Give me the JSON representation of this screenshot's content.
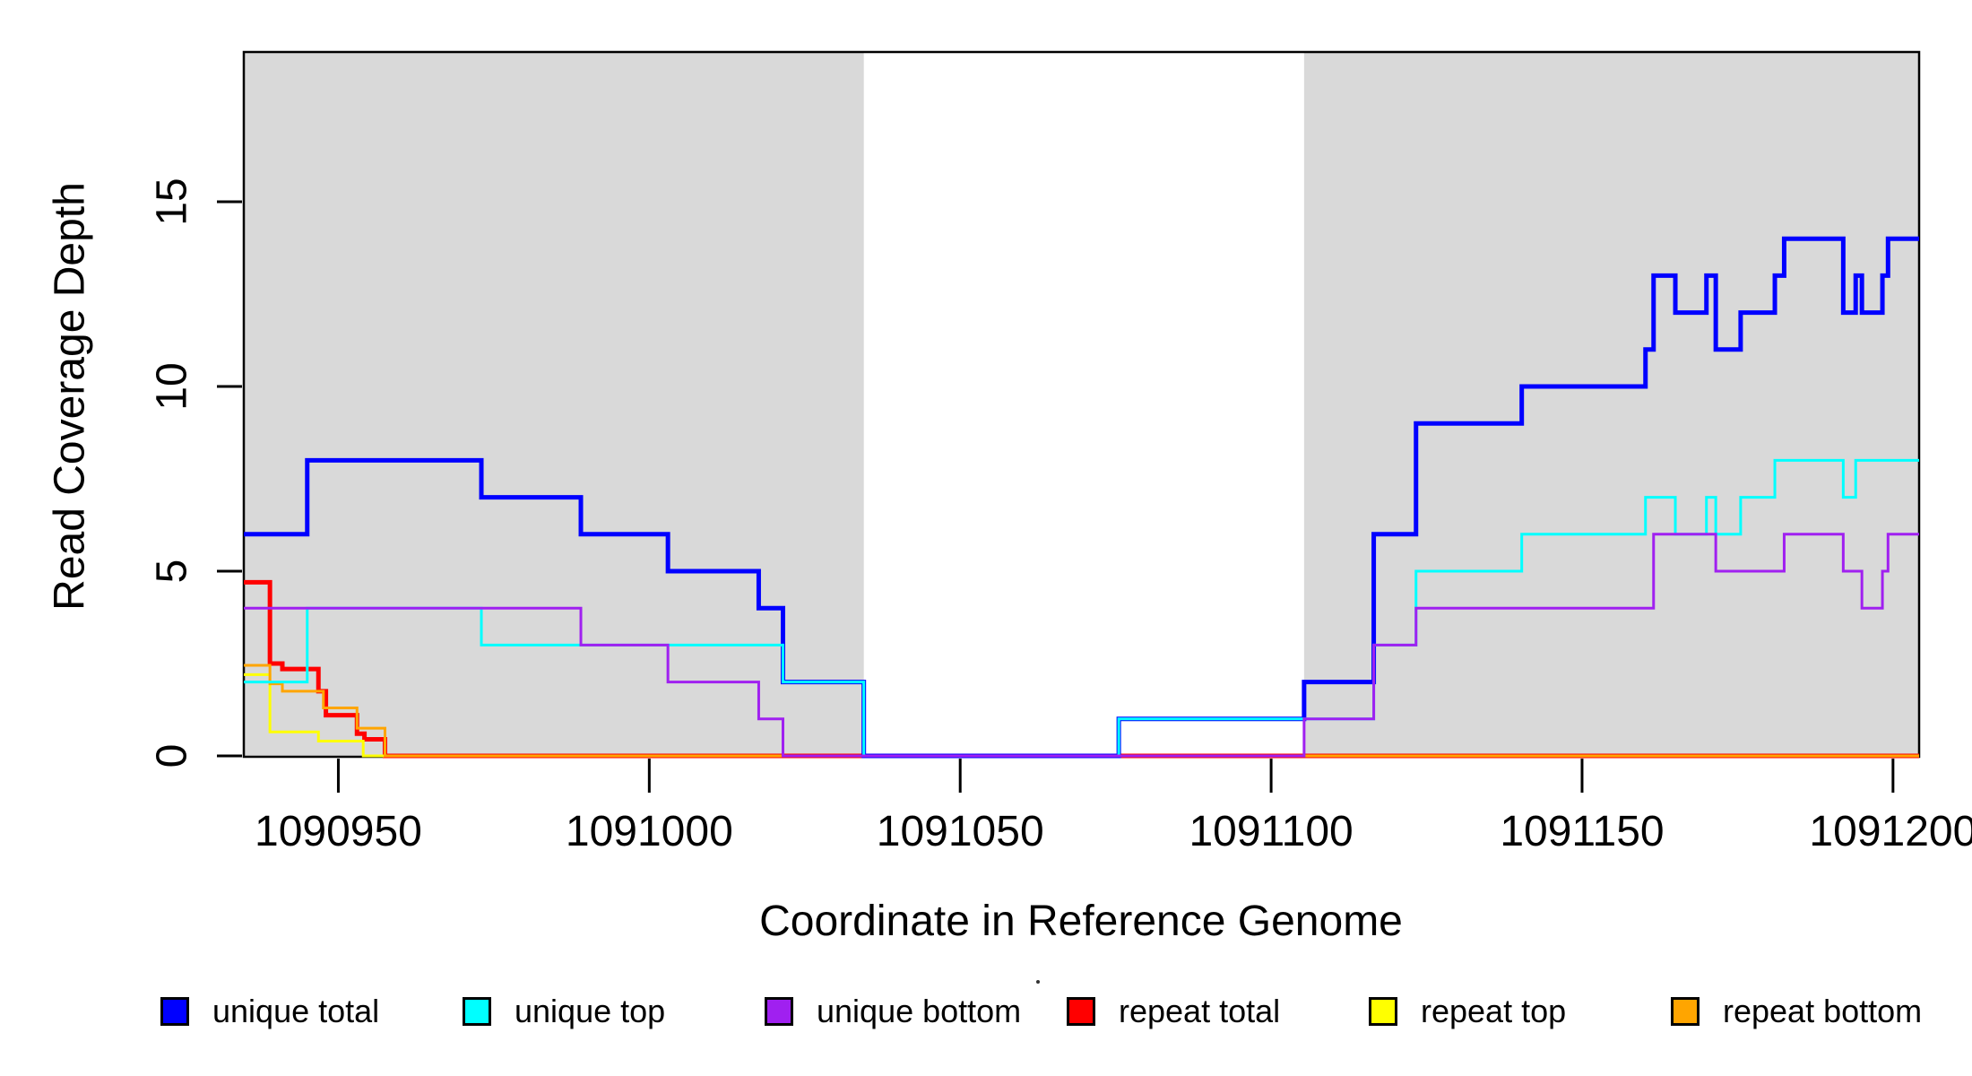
{
  "figure": {
    "x_title": "Coordinate in Reference Genome",
    "y_title": "Read Coverage Depth"
  },
  "legend": {
    "position": "bottom",
    "items": [
      {
        "label": "unique total",
        "color": "#0000FF"
      },
      {
        "label": "unique top",
        "color": "#00FFFF"
      },
      {
        "label": "unique bottom",
        "color": "#A020F0"
      },
      {
        "label": "repeat total",
        "color": "#FF0000"
      },
      {
        "label": "repeat top",
        "color": "#FFFF00"
      },
      {
        "label": "repeat bottom",
        "color": "#FFA500"
      }
    ]
  },
  "chart_data": {
    "type": "line",
    "subtype": "step-coverage",
    "title": "",
    "xlabel": "Coordinate in Reference Genome",
    "ylabel": "Read Coverage Depth",
    "grid": false,
    "background_color": "#FFFFFF",
    "shaded_region_color": "#D9D9D9",
    "shaded_regions": [
      {
        "x0": 1090934.8,
        "x1": 1091034.5
      },
      {
        "x0": 1091105.3,
        "x1": 1091204.2
      }
    ],
    "x_axis": {
      "range": [
        1090934.8,
        1091204.2
      ],
      "ticks": [
        {
          "value": 1090950,
          "label": "1090950"
        },
        {
          "value": 1091000,
          "label": "1091000"
        },
        {
          "value": 1091050,
          "label": "1091050"
        },
        {
          "value": 1091100,
          "label": "1091100"
        },
        {
          "value": 1091150,
          "label": "1091150"
        },
        {
          "value": 1091200,
          "label": "1091200"
        }
      ]
    },
    "y_axis": {
      "range": [
        0,
        19
      ],
      "ticks": [
        {
          "value": 0,
          "label": "0"
        },
        {
          "value": 5,
          "label": "5"
        },
        {
          "value": 10,
          "label": "10"
        },
        {
          "value": 15,
          "label": "15"
        }
      ]
    },
    "series": [
      {
        "name": "repeat total",
        "color": "#FF0000",
        "line_width": 5,
        "steps": [
          [
            1090934.8,
            4.7
          ],
          [
            1090939,
            2.5
          ],
          [
            1090941,
            2.35
          ],
          [
            1090946.8,
            1.75
          ],
          [
            1090948,
            1.1
          ],
          [
            1090953,
            0.6
          ],
          [
            1090954.2,
            0.45
          ],
          [
            1090957.5,
            0
          ]
        ]
      },
      {
        "name": "repeat top",
        "color": "#FFFF00",
        "line_width": 3,
        "steps": [
          [
            1090934.8,
            2.2
          ],
          [
            1090939,
            0.65
          ],
          [
            1090946.8,
            0.4
          ],
          [
            1090954,
            0
          ]
        ]
      },
      {
        "name": "repeat bottom",
        "color": "#FFA500",
        "line_width": 3,
        "steps": [
          [
            1090934.8,
            2.45
          ],
          [
            1090939,
            1.95
          ],
          [
            1090941,
            1.75
          ],
          [
            1090947.6,
            1.3
          ],
          [
            1090953,
            0.75
          ],
          [
            1090957.5,
            0
          ]
        ]
      },
      {
        "name": "unique total",
        "color": "#0000FF",
        "line_width": 5,
        "steps": [
          [
            1090934.8,
            6
          ],
          [
            1090945,
            8
          ],
          [
            1090973,
            7
          ],
          [
            1090989,
            6
          ],
          [
            1091003,
            5
          ],
          [
            1091017.6,
            4
          ],
          [
            1091021.5,
            2
          ],
          [
            1091034.5,
            0
          ],
          [
            1091075.5,
            1
          ],
          [
            1091105.3,
            2
          ],
          [
            1091116.5,
            6
          ],
          [
            1091123.3,
            9
          ],
          [
            1091140.3,
            10
          ],
          [
            1091160.2,
            11
          ],
          [
            1091161.5,
            13
          ],
          [
            1091165,
            12
          ],
          [
            1091170,
            13
          ],
          [
            1091171.5,
            11
          ],
          [
            1091175.5,
            12
          ],
          [
            1091181,
            13
          ],
          [
            1091182.5,
            14
          ],
          [
            1091192,
            12
          ],
          [
            1091194,
            13
          ],
          [
            1091195,
            12
          ],
          [
            1091198.3,
            13
          ],
          [
            1091199.2,
            14
          ]
        ]
      },
      {
        "name": "unique top",
        "color": "#00FFFF",
        "line_width": 3,
        "steps": [
          [
            1090934.8,
            2
          ],
          [
            1090945,
            4
          ],
          [
            1090973,
            3
          ],
          [
            1091021.5,
            2
          ],
          [
            1091034.5,
            0
          ],
          [
            1091075.5,
            1
          ],
          [
            1091116.5,
            3
          ],
          [
            1091123.3,
            5
          ],
          [
            1091140.3,
            6
          ],
          [
            1091160.2,
            7
          ],
          [
            1091165,
            6
          ],
          [
            1091170,
            7
          ],
          [
            1091171.5,
            6
          ],
          [
            1091175.5,
            7
          ],
          [
            1091181,
            8
          ],
          [
            1091192,
            7
          ],
          [
            1091194,
            8
          ]
        ]
      },
      {
        "name": "unique bottom",
        "color": "#A020F0",
        "line_width": 3,
        "steps": [
          [
            1090934.8,
            4
          ],
          [
            1090989,
            3
          ],
          [
            1091003,
            2
          ],
          [
            1091017.6,
            1
          ],
          [
            1091021.5,
            0
          ],
          [
            1091105.3,
            1
          ],
          [
            1091116.5,
            3
          ],
          [
            1091123.3,
            4
          ],
          [
            1091161.5,
            6
          ],
          [
            1091171.5,
            5
          ],
          [
            1091182.5,
            6
          ],
          [
            1091192,
            5
          ],
          [
            1091195,
            4
          ],
          [
            1091198.3,
            5
          ],
          [
            1091199.2,
            6
          ]
        ]
      }
    ]
  }
}
